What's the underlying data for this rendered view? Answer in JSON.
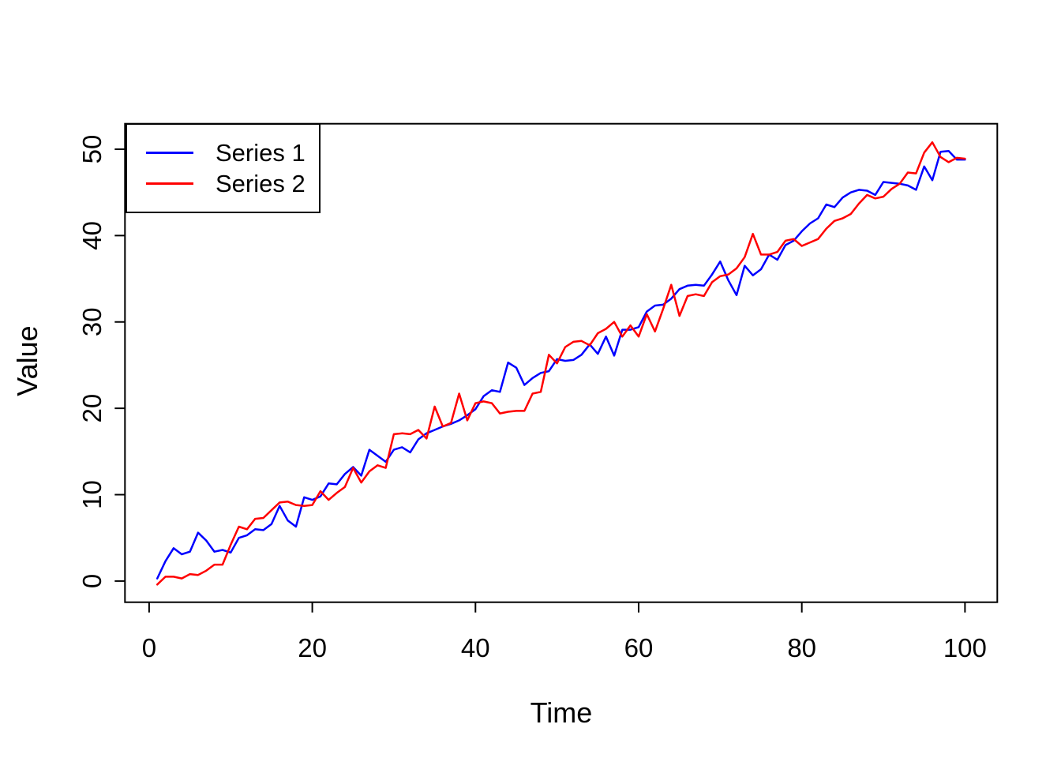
{
  "figure": {
    "background": "#ffffff",
    "axis_color": "#000000",
    "text_color": "#000000"
  },
  "chart_data": {
    "type": "line",
    "title": "",
    "xlabel": "Time",
    "ylabel": "Value",
    "xlim": [
      -2.96,
      103.96
    ],
    "ylim": [
      -2.45,
      52.95
    ],
    "x_ticks": [
      0,
      20,
      40,
      60,
      80,
      100
    ],
    "y_ticks": [
      0,
      10,
      20,
      30,
      40,
      50
    ],
    "grid": false,
    "x_start": 1,
    "x_step": 1,
    "n": 100,
    "legend": {
      "position": "top-left",
      "entries": [
        {
          "label": "Series 1",
          "color": "#0000ff"
        },
        {
          "label": "Series 2",
          "color": "#ff0000"
        }
      ]
    },
    "series": [
      {
        "name": "Series 1",
        "color": "#0000ff",
        "values": [
          0.3,
          2.3,
          3.8,
          3.1,
          3.4,
          5.6,
          4.7,
          3.4,
          3.6,
          3.3,
          5.0,
          5.3,
          6.0,
          5.9,
          6.6,
          8.7,
          7.0,
          6.3,
          9.7,
          9.4,
          9.8,
          11.3,
          11.2,
          12.4,
          13.2,
          12.2,
          15.2,
          14.5,
          13.8,
          15.2,
          15.5,
          14.9,
          16.4,
          17.1,
          17.5,
          17.9,
          18.2,
          18.6,
          19.2,
          19.9,
          21.4,
          22.1,
          21.9,
          25.3,
          24.7,
          22.7,
          23.5,
          24.1,
          24.3,
          25.7,
          25.5,
          25.6,
          26.2,
          27.4,
          26.3,
          28.3,
          26.1,
          29.1,
          29.1,
          29.4,
          31.2,
          31.9,
          32.0,
          32.7,
          33.8,
          34.2,
          34.3,
          34.2,
          35.5,
          37.0,
          34.8,
          33.1,
          36.5,
          35.4,
          36.1,
          37.8,
          37.2,
          38.9,
          39.4,
          40.5,
          41.4,
          42.0,
          43.6,
          43.3,
          44.4,
          45.0,
          45.3,
          45.2,
          44.7,
          46.2,
          46.1,
          46.0,
          45.8,
          45.3,
          48.0,
          46.4,
          49.7,
          49.8,
          48.8,
          48.8
        ]
      },
      {
        "name": "Series 2",
        "color": "#ff0000",
        "values": [
          -0.4,
          0.5,
          0.5,
          0.3,
          0.8,
          0.7,
          1.2,
          1.9,
          1.9,
          4.2,
          6.3,
          6.0,
          7.2,
          7.3,
          8.2,
          9.1,
          9.2,
          8.8,
          8.7,
          8.8,
          10.4,
          9.4,
          10.2,
          10.9,
          13.1,
          11.4,
          12.7,
          13.4,
          13.1,
          17.0,
          17.1,
          17.0,
          17.5,
          16.5,
          20.2,
          17.9,
          18.3,
          21.7,
          18.6,
          20.6,
          20.8,
          20.6,
          19.4,
          19.6,
          19.7,
          19.7,
          21.7,
          21.9,
          26.2,
          25.2,
          27.1,
          27.7,
          27.8,
          27.3,
          28.7,
          29.2,
          30.0,
          28.3,
          29.6,
          28.3,
          30.9,
          28.9,
          31.5,
          34.3,
          30.7,
          33.0,
          33.2,
          33.0,
          34.6,
          35.3,
          35.5,
          36.2,
          37.5,
          40.2,
          37.8,
          37.8,
          38.1,
          39.4,
          39.6,
          38.8,
          39.2,
          39.6,
          40.8,
          41.7,
          42.0,
          42.5,
          43.7,
          44.7,
          44.3,
          44.5,
          45.4,
          46.0,
          47.3,
          47.2,
          49.6,
          50.8,
          49.1,
          48.5,
          49.0,
          48.9
        ]
      }
    ]
  }
}
